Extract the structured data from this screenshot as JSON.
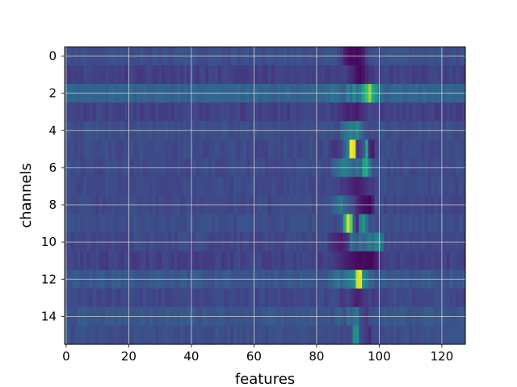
{
  "chart_data": {
    "type": "heatmap",
    "title": "",
    "xlabel": "features",
    "ylabel": "channels",
    "xlim": [
      0,
      127
    ],
    "ylim": [
      0,
      15
    ],
    "xticks": [
      0,
      20,
      40,
      60,
      80,
      100,
      120
    ],
    "yticks": [
      0,
      2,
      4,
      6,
      8,
      10,
      12,
      14
    ],
    "grid": true,
    "colormap": "viridis",
    "n_features": 128,
    "n_channels": 16,
    "channel_profiles": [
      {
        "channel": 0,
        "base": 0.3,
        "features": [
          88,
          89,
          90,
          91,
          92,
          93,
          94,
          95,
          96
        ],
        "values": [
          0.22,
          0.12,
          0.06,
          0.04,
          0.05,
          0.03,
          0.06,
          0.1,
          0.22
        ]
      },
      {
        "channel": 1,
        "base": 0.24,
        "features": [
          90,
          91,
          92,
          93,
          94,
          95,
          96,
          97
        ],
        "values": [
          0.2,
          0.16,
          0.12,
          0.05,
          0.03,
          0.08,
          0.14,
          0.2
        ]
      },
      {
        "channel": 2,
        "base": 0.4,
        "features": [
          85,
          86,
          90,
          91,
          92,
          93,
          94,
          95,
          96,
          97,
          98,
          99,
          100
        ],
        "values": [
          0.5,
          0.45,
          0.55,
          0.45,
          0.6,
          0.45,
          0.55,
          0.75,
          0.8,
          0.9,
          0.75,
          0.65,
          0.5
        ]
      },
      {
        "channel": 3,
        "base": 0.24,
        "features": [
          88,
          89,
          90,
          91,
          92,
          93,
          94,
          95
        ],
        "values": [
          0.18,
          0.15,
          0.12,
          0.14,
          0.12,
          0.1,
          0.15,
          0.18
        ]
      },
      {
        "channel": 4,
        "base": 0.3,
        "features": [
          88,
          89,
          90,
          91,
          92,
          93,
          94,
          95,
          96
        ],
        "values": [
          0.4,
          0.45,
          0.5,
          0.55,
          0.5,
          0.6,
          0.45,
          0.35,
          0.3
        ]
      },
      {
        "channel": 5,
        "base": 0.28,
        "features": [
          85,
          86,
          87,
          88,
          89,
          90,
          91,
          92,
          93,
          94,
          95,
          96,
          97,
          98
        ],
        "values": [
          0.2,
          0.18,
          0.22,
          0.25,
          0.4,
          0.55,
          1.0,
          0.97,
          0.2,
          0.25,
          0.35,
          0.7,
          0.15,
          0.1
        ]
      },
      {
        "channel": 6,
        "base": 0.28,
        "features": [
          85,
          86,
          87,
          88,
          89,
          90,
          91,
          92,
          93,
          94,
          95,
          96,
          97
        ],
        "values": [
          0.35,
          0.4,
          0.45,
          0.5,
          0.55,
          0.5,
          0.45,
          0.4,
          0.45,
          0.4,
          0.7,
          0.75,
          0.5
        ]
      },
      {
        "channel": 7,
        "base": 0.28,
        "features": [
          88,
          89,
          90,
          91,
          92,
          93,
          94,
          95,
          96,
          97,
          98,
          99
        ],
        "values": [
          0.2,
          0.22,
          0.18,
          0.15,
          0.12,
          0.1,
          0.12,
          0.15,
          0.18,
          0.22,
          0.2,
          0.25
        ]
      },
      {
        "channel": 8,
        "base": 0.27,
        "features": [
          84,
          85,
          86,
          87,
          88,
          89,
          90,
          91,
          92,
          93,
          94,
          95,
          96,
          97,
          98
        ],
        "values": [
          0.3,
          0.35,
          0.4,
          0.45,
          0.5,
          0.4,
          0.35,
          0.3,
          0.25,
          0.15,
          0.1,
          0.06,
          0.05,
          0.02,
          0.12
        ]
      },
      {
        "channel": 9,
        "base": 0.3,
        "features": [
          86,
          87,
          88,
          89,
          90,
          91,
          92,
          93,
          94,
          95,
          96
        ],
        "values": [
          0.25,
          0.3,
          0.35,
          0.75,
          0.95,
          0.85,
          0.35,
          0.15,
          0.55,
          0.65,
          0.45
        ]
      },
      {
        "channel": 10,
        "base": 0.27,
        "features": [
          84,
          85,
          86,
          87,
          88,
          89,
          90,
          91,
          92,
          93,
          94,
          95,
          96,
          97,
          98,
          99,
          100,
          101
        ],
        "values": [
          0.2,
          0.18,
          0.15,
          0.12,
          0.1,
          0.15,
          0.2,
          0.45,
          0.4,
          0.35,
          0.45,
          0.4,
          0.45,
          0.5,
          0.45,
          0.55,
          0.6,
          0.45
        ]
      },
      {
        "channel": 11,
        "base": 0.24,
        "features": [
          86,
          87,
          88,
          89,
          90,
          91,
          92,
          93,
          94,
          95,
          96,
          97,
          98,
          99,
          100
        ],
        "values": [
          0.2,
          0.18,
          0.15,
          0.12,
          0.1,
          0.08,
          0.06,
          0.04,
          0.03,
          0.05,
          0.04,
          0.03,
          0.05,
          0.1,
          0.15
        ]
      },
      {
        "channel": 12,
        "base": 0.34,
        "features": [
          85,
          86,
          87,
          88,
          89,
          90,
          91,
          92,
          93,
          94,
          95,
          96,
          97
        ],
        "values": [
          0.4,
          0.45,
          0.5,
          0.4,
          0.45,
          0.5,
          0.55,
          0.6,
          0.95,
          0.98,
          0.6,
          0.5,
          0.4
        ]
      },
      {
        "channel": 13,
        "base": 0.27,
        "features": [
          88,
          89,
          90,
          91,
          92,
          93,
          94,
          95,
          96,
          97,
          98
        ],
        "values": [
          0.2,
          0.22,
          0.25,
          0.2,
          0.15,
          0.12,
          0.15,
          0.2,
          0.22,
          0.25,
          0.2
        ]
      },
      {
        "channel": 14,
        "base": 0.34,
        "features": [
          85,
          86,
          87,
          88,
          89,
          90,
          91,
          92,
          93,
          94,
          95,
          96,
          97
        ],
        "values": [
          0.3,
          0.35,
          0.4,
          0.35,
          0.3,
          0.45,
          0.4,
          0.45,
          0.5,
          0.3,
          0.25,
          0.2,
          0.3
        ]
      },
      {
        "channel": 15,
        "base": 0.3,
        "features": [
          88,
          89,
          90,
          91,
          92,
          93,
          94,
          95,
          96,
          97
        ],
        "values": [
          0.25,
          0.3,
          0.25,
          0.3,
          0.6,
          0.65,
          0.3,
          0.25,
          0.2,
          0.15
        ]
      }
    ]
  }
}
